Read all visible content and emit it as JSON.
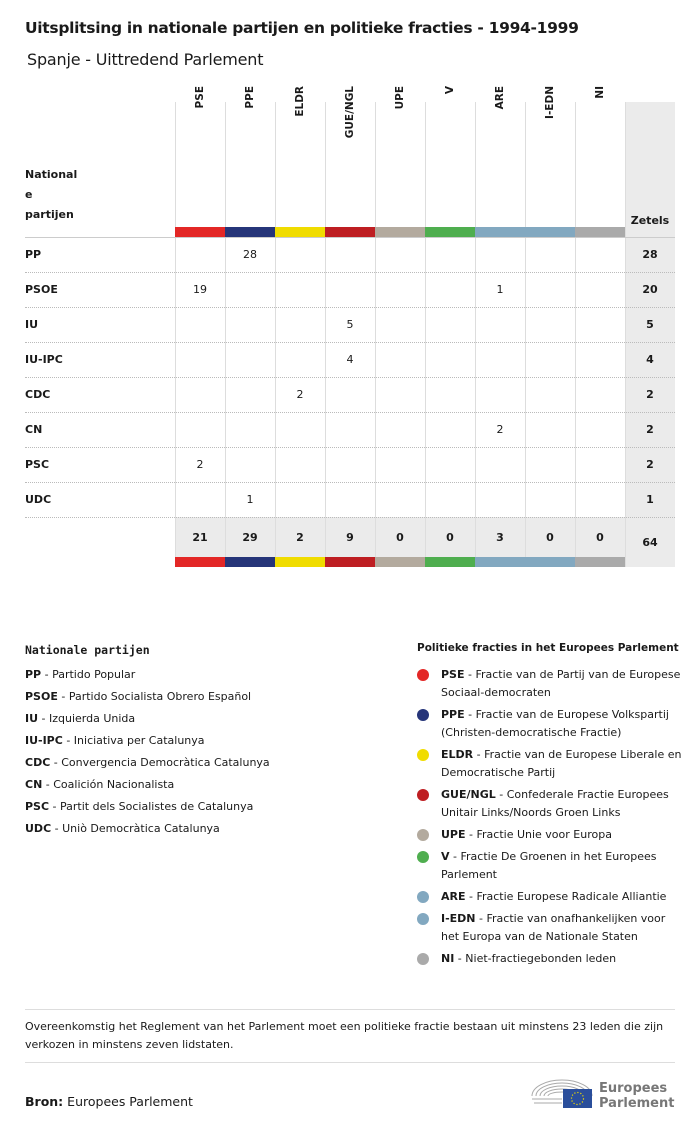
{
  "title": "Uitsplitsing in nationale partijen en politieke fracties - 1994-1999",
  "subtitle": "Spanje - Uittredend Parlement",
  "table": {
    "row_header": "National\ne\npartijen",
    "total_header": "Zetels",
    "groups": [
      {
        "code": "PSE",
        "color": "#e32726"
      },
      {
        "code": "PPE",
        "color": "#263579"
      },
      {
        "code": "ELDR",
        "color": "#f0dc00"
      },
      {
        "code": "GUE/NGL",
        "color": "#be1e22"
      },
      {
        "code": "UPE",
        "color": "#b3aa9e"
      },
      {
        "code": "V",
        "color": "#4fae4f"
      },
      {
        "code": "ARE",
        "color": "#82a8c0"
      },
      {
        "code": "I-EDN",
        "color": "#82a8c0"
      },
      {
        "code": "NI",
        "color": "#aaaaaa"
      }
    ],
    "rows": [
      {
        "party": "PP",
        "values": [
          "",
          "28",
          "",
          "",
          "",
          "",
          "",
          "",
          ""
        ],
        "total": "28"
      },
      {
        "party": "PSOE",
        "values": [
          "19",
          "",
          "",
          "",
          "",
          "",
          "1",
          "",
          ""
        ],
        "total": "20"
      },
      {
        "party": "IU",
        "values": [
          "",
          "",
          "",
          "5",
          "",
          "",
          "",
          "",
          ""
        ],
        "total": "5"
      },
      {
        "party": "IU-IPC",
        "values": [
          "",
          "",
          "",
          "4",
          "",
          "",
          "",
          "",
          ""
        ],
        "total": "4"
      },
      {
        "party": "CDC",
        "values": [
          "",
          "",
          "2",
          "",
          "",
          "",
          "",
          "",
          ""
        ],
        "total": "2"
      },
      {
        "party": "CN",
        "values": [
          "",
          "",
          "",
          "",
          "",
          "",
          "2",
          "",
          ""
        ],
        "total": "2"
      },
      {
        "party": "PSC",
        "values": [
          "2",
          "",
          "",
          "",
          "",
          "",
          "",
          "",
          ""
        ],
        "total": "2"
      },
      {
        "party": "UDC",
        "values": [
          "",
          "1",
          "",
          "",
          "",
          "",
          "",
          "",
          ""
        ],
        "total": "1"
      }
    ],
    "totals": [
      "21",
      "29",
      "2",
      "9",
      "0",
      "0",
      "3",
      "0",
      "0"
    ],
    "grand_total": "64"
  },
  "legend_national": {
    "title": "Nationale partijen",
    "items": [
      {
        "code": "PP",
        "name": "Partido Popular"
      },
      {
        "code": "PSOE",
        "name": "Partido Socialista Obrero Español"
      },
      {
        "code": "IU",
        "name": "Izquierda Unida"
      },
      {
        "code": "IU-IPC",
        "name": "Iniciativa per Catalunya"
      },
      {
        "code": "CDC",
        "name": "Convergencia Democràtica Catalunya"
      },
      {
        "code": "CN",
        "name": "Coalición Nacionalista"
      },
      {
        "code": "PSC",
        "name": "Partit dels Socialistes de Catalunya"
      },
      {
        "code": "UDC",
        "name": "Uniò Democràtica Catalunya"
      }
    ]
  },
  "legend_groups": {
    "title": "Politieke fracties in het Europees Parlement",
    "items": [
      {
        "code": "PSE",
        "name": "Fractie van de Partij van de Europese Sociaal-democraten",
        "color": "#e32726"
      },
      {
        "code": "PPE",
        "name": "Fractie van de Europese Volkspartij (Christen-democratische Fractie)",
        "color": "#263579"
      },
      {
        "code": "ELDR",
        "name": "Fractie van de Europese Liberale en Democratische Partij",
        "color": "#f0dc00"
      },
      {
        "code": "GUE/NGL",
        "name": "Confederale Fractie Europees Unitair Links/Noords Groen Links",
        "color": "#be1e22"
      },
      {
        "code": "UPE",
        "name": "Fractie Unie voor Europa",
        "color": "#b3aa9e"
      },
      {
        "code": "V",
        "name": "Fractie De Groenen in het Europees Parlement",
        "color": "#4fae4f"
      },
      {
        "code": "ARE",
        "name": "Fractie Europese Radicale Alliantie",
        "color": "#82a8c0"
      },
      {
        "code": "I-EDN",
        "name": "Fractie van onafhankelijken voor het Europa van de Nationale Staten",
        "color": "#82a8c0"
      },
      {
        "code": "NI",
        "name": "Niet-fractiegebonden leden",
        "color": "#aaaaaa"
      }
    ]
  },
  "note": "Overeenkomstig het Reglement van het Parlement moet een politieke fractie bestaan uit minstens 23 leden die zijn verkozen in minstens zeven lidstaten.",
  "source_label": "Bron:",
  "source": "Europees Parlement",
  "logo_text": "Europees Parlement"
}
